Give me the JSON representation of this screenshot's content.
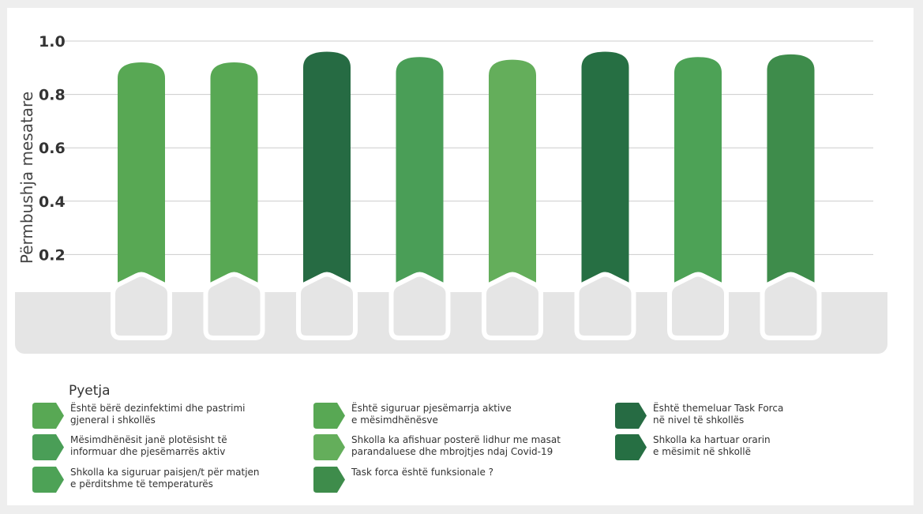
{
  "chart_data": {
    "type": "bar",
    "title": "",
    "xlabel": "",
    "ylabel": "Përmbushja mesatare",
    "ylim": [
      0,
      1.0
    ],
    "yticks": [
      0.2,
      0.4,
      0.6,
      0.8,
      1.0
    ],
    "ytick_labels": [
      "0.2",
      "0.4",
      "0.6",
      "0.8",
      "1.0"
    ],
    "grid": true,
    "legend_title": "Pyetja",
    "legend_placement": "bottom",
    "bars": [
      {
        "label": "Është bërë dezinfektimi dhe pastrimi\ngjeneral i shkollës",
        "value": 0.92,
        "color": "#58a854"
      },
      {
        "label": "Është siguruar pjesëmarrja aktive\ne mësimdhënësve",
        "value": 0.92,
        "color": "#58a854"
      },
      {
        "label": "Është themeluar Task Forca\nnë nivel të shkollës",
        "value": 0.96,
        "color": "#266b43"
      },
      {
        "label": "Mësimdhënësit janë plotësisht të\ninformuar dhe pjesëmarrës aktiv",
        "value": 0.94,
        "color": "#4a9e57"
      },
      {
        "label": "Shkolla ka afishuar posterë lidhur me masat\nparandaluese dhe mbrojtjes ndaj Covid-19",
        "value": 0.93,
        "color": "#64ae5b"
      },
      {
        "label": "Shkolla ka hartuar orarin\ne mësimit në shkollë",
        "value": 0.96,
        "color": "#266f43"
      },
      {
        "label": "Shkolla ka siguruar paisjen/t për matjen\ne përditshme të temperaturës",
        "value": 0.94,
        "color": "#4da256"
      },
      {
        "label": "Task forca është funksionale ?",
        "value": 0.95,
        "color": "#3e8c4b"
      }
    ],
    "legend_order": [
      0,
      3,
      6,
      1,
      4,
      7,
      2,
      5
    ]
  }
}
